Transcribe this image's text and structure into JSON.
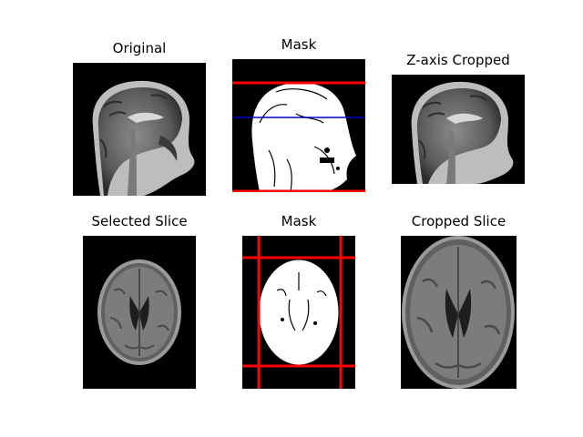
{
  "figure": {
    "panels": [
      {
        "id": "original",
        "title": "Original"
      },
      {
        "id": "mask_sagittal",
        "title": "Mask"
      },
      {
        "id": "z_cropped",
        "title": "Z-axis Cropped"
      },
      {
        "id": "selected_slice",
        "title": "Selected Slice"
      },
      {
        "id": "mask_axial",
        "title": "Mask"
      },
      {
        "id": "cropped_slice",
        "title": "Cropped Slice"
      }
    ]
  },
  "colors": {
    "background": "#000000",
    "crop_line": "#ff0000",
    "slice_line": "#0000cc",
    "mask_fill": "#ffffff"
  }
}
